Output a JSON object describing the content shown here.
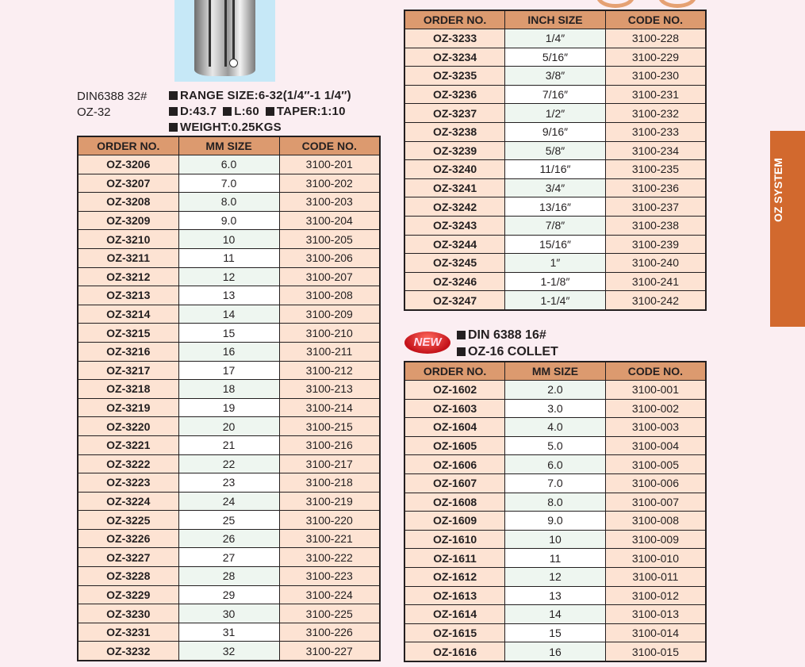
{
  "side_tab": "OZ SYSTEM",
  "oz32": {
    "model": "DIN6388 32#",
    "name": "OZ-32",
    "range": "RANGE SIZE:6-32(1/4″-1 1/4″)",
    "d": "D:43.7",
    "l": "L:60",
    "taper": "TAPER:1:10",
    "weight": "WEIGHT:0.25KGS",
    "headers": [
      "ORDER NO.",
      "MM SIZE",
      "CODE NO."
    ],
    "rows": [
      [
        "OZ-3206",
        "6.0",
        "3100-201"
      ],
      [
        "OZ-3207",
        "7.0",
        "3100-202"
      ],
      [
        "OZ-3208",
        "8.0",
        "3100-203"
      ],
      [
        "OZ-3209",
        "9.0",
        "3100-204"
      ],
      [
        "OZ-3210",
        "10",
        "3100-205"
      ],
      [
        "OZ-3211",
        "11",
        "3100-206"
      ],
      [
        "OZ-3212",
        "12",
        "3100-207"
      ],
      [
        "OZ-3213",
        "13",
        "3100-208"
      ],
      [
        "OZ-3214",
        "14",
        "3100-209"
      ],
      [
        "OZ-3215",
        "15",
        "3100-210"
      ],
      [
        "OZ-3216",
        "16",
        "3100-211"
      ],
      [
        "OZ-3217",
        "17",
        "3100-212"
      ],
      [
        "OZ-3218",
        "18",
        "3100-213"
      ],
      [
        "OZ-3219",
        "19",
        "3100-214"
      ],
      [
        "OZ-3220",
        "20",
        "3100-215"
      ],
      [
        "OZ-3221",
        "21",
        "3100-216"
      ],
      [
        "OZ-3222",
        "22",
        "3100-217"
      ],
      [
        "OZ-3223",
        "23",
        "3100-218"
      ],
      [
        "OZ-3224",
        "24",
        "3100-219"
      ],
      [
        "OZ-3225",
        "25",
        "3100-220"
      ],
      [
        "OZ-3226",
        "26",
        "3100-221"
      ],
      [
        "OZ-3227",
        "27",
        "3100-222"
      ],
      [
        "OZ-3228",
        "28",
        "3100-223"
      ],
      [
        "OZ-3229",
        "29",
        "3100-224"
      ],
      [
        "OZ-3230",
        "30",
        "3100-225"
      ],
      [
        "OZ-3231",
        "31",
        "3100-226"
      ],
      [
        "OZ-3232",
        "32",
        "3100-227"
      ]
    ]
  },
  "oz32_inch": {
    "headers": [
      "ORDER NO.",
      "INCH SIZE",
      "CODE NO."
    ],
    "rows": [
      [
        "OZ-3233",
        "1/4″",
        "3100-228"
      ],
      [
        "OZ-3234",
        "5/16″",
        "3100-229"
      ],
      [
        "OZ-3235",
        "3/8″",
        "3100-230"
      ],
      [
        "OZ-3236",
        "7/16″",
        "3100-231"
      ],
      [
        "OZ-3237",
        "1/2″",
        "3100-232"
      ],
      [
        "OZ-3238",
        "9/16″",
        "3100-233"
      ],
      [
        "OZ-3239",
        "5/8″",
        "3100-234"
      ],
      [
        "OZ-3240",
        "11/16″",
        "3100-235"
      ],
      [
        "OZ-3241",
        "3/4″",
        "3100-236"
      ],
      [
        "OZ-3242",
        "13/16″",
        "3100-237"
      ],
      [
        "OZ-3243",
        "7/8″",
        "3100-238"
      ],
      [
        "OZ-3244",
        "15/16″",
        "3100-239"
      ],
      [
        "OZ-3245",
        "1″",
        "3100-240"
      ],
      [
        "OZ-3246",
        "1-1/8″",
        "3100-241"
      ],
      [
        "OZ-3247",
        "1-1/4″",
        "3100-242"
      ]
    ]
  },
  "oz16": {
    "badge": "NEW",
    "line1": "DIN 6388 16#",
    "line2": "OZ-16 COLLET",
    "headers": [
      "ORDER NO.",
      "MM SIZE",
      "CODE NO."
    ],
    "rows": [
      [
        "OZ-1602",
        "2.0",
        "3100-001"
      ],
      [
        "OZ-1603",
        "3.0",
        "3100-002"
      ],
      [
        "OZ-1604",
        "4.0",
        "3100-003"
      ],
      [
        "OZ-1605",
        "5.0",
        "3100-004"
      ],
      [
        "OZ-1606",
        "6.0",
        "3100-005"
      ],
      [
        "OZ-1607",
        "7.0",
        "3100-006"
      ],
      [
        "OZ-1608",
        "8.0",
        "3100-007"
      ],
      [
        "OZ-1609",
        "9.0",
        "3100-008"
      ],
      [
        "OZ-1610",
        "10",
        "3100-009"
      ],
      [
        "OZ-1611",
        "11",
        "3100-010"
      ],
      [
        "OZ-1612",
        "12",
        "3100-011"
      ],
      [
        "OZ-1613",
        "13",
        "3100-012"
      ],
      [
        "OZ-1614",
        "14",
        "3100-013"
      ],
      [
        "OZ-1615",
        "15",
        "3100-014"
      ],
      [
        "OZ-1616",
        "16",
        "3100-015"
      ]
    ]
  }
}
